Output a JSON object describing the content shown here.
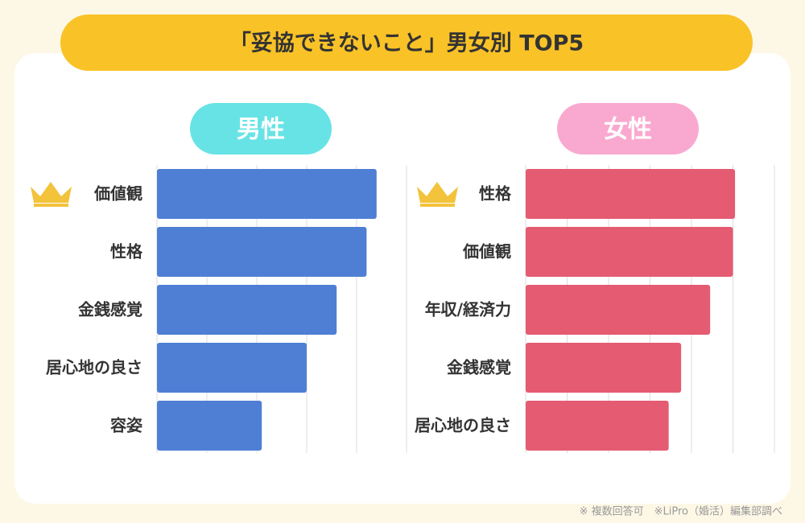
{
  "title": "「妥協できないこと」男女別 TOP5",
  "note": "※ 複数回答可　※LiPro（婚活）編集部調べ",
  "chart_data": [
    {
      "type": "bar",
      "orientation": "horizontal",
      "title": "男性",
      "title_color": "#67e3e6",
      "categories": [
        "価値観",
        "性格",
        "金銭感覚",
        "居心地の良さ",
        "容姿"
      ],
      "values": [
        4.4,
        4.2,
        3.6,
        3.0,
        2.1
      ],
      "color": "#4f7fd4",
      "xlim": [
        0,
        5
      ],
      "xticks": [
        0,
        1,
        2,
        3,
        4,
        5
      ],
      "grid": true
    },
    {
      "type": "bar",
      "orientation": "horizontal",
      "title": "女性",
      "title_color": "#f9a9cf",
      "categories": [
        "性格",
        "価値観",
        "年収/経済力",
        "金銭感覚",
        "居心地の良さ"
      ],
      "values": [
        5.05,
        5.0,
        4.45,
        3.75,
        3.45
      ],
      "color": "#e45b72",
      "xlim": [
        0,
        6
      ],
      "xticks": [
        0,
        1,
        2,
        3,
        4,
        5,
        6
      ],
      "grid": true
    }
  ]
}
